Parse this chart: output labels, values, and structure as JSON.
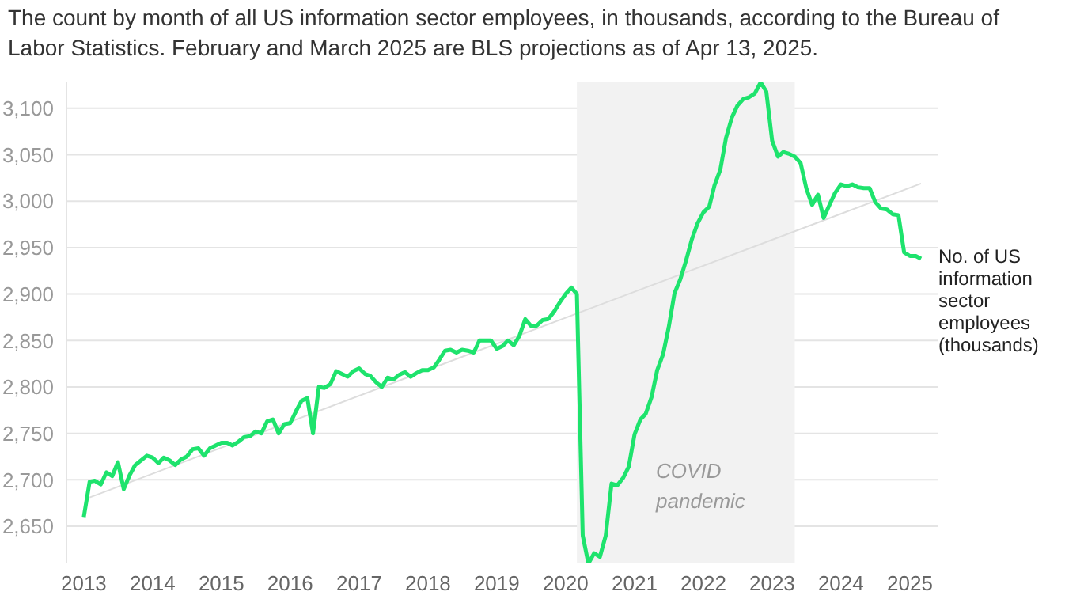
{
  "chart_data": {
    "type": "line",
    "title": "The count by month of all US information sector employees, in thousands, according to the Bureau of Labor Statistics. February and March 2025 are BLS projections as of Apr 13, 2025.",
    "x": [
      "2013-01",
      "2013-02",
      "2013-03",
      "2013-04",
      "2013-05",
      "2013-06",
      "2013-07",
      "2013-08",
      "2013-09",
      "2013-10",
      "2013-11",
      "2013-12",
      "2014-01",
      "2014-02",
      "2014-03",
      "2014-04",
      "2014-05",
      "2014-06",
      "2014-07",
      "2014-08",
      "2014-09",
      "2014-10",
      "2014-11",
      "2014-12",
      "2015-01",
      "2015-02",
      "2015-03",
      "2015-04",
      "2015-05",
      "2015-06",
      "2015-07",
      "2015-08",
      "2015-09",
      "2015-10",
      "2015-11",
      "2015-12",
      "2016-01",
      "2016-02",
      "2016-03",
      "2016-04",
      "2016-05",
      "2016-06",
      "2016-07",
      "2016-08",
      "2016-09",
      "2016-10",
      "2016-11",
      "2016-12",
      "2017-01",
      "2017-02",
      "2017-03",
      "2017-04",
      "2017-05",
      "2017-06",
      "2017-07",
      "2017-08",
      "2017-09",
      "2017-10",
      "2017-11",
      "2017-12",
      "2018-01",
      "2018-02",
      "2018-03",
      "2018-04",
      "2018-05",
      "2018-06",
      "2018-07",
      "2018-08",
      "2018-09",
      "2018-10",
      "2018-11",
      "2018-12",
      "2019-01",
      "2019-02",
      "2019-03",
      "2019-04",
      "2019-05",
      "2019-06",
      "2019-07",
      "2019-08",
      "2019-09",
      "2019-10",
      "2019-11",
      "2019-12",
      "2020-01",
      "2020-02",
      "2020-03",
      "2020-04",
      "2020-05",
      "2020-06",
      "2020-07",
      "2020-08",
      "2020-09",
      "2020-10",
      "2020-11",
      "2020-12",
      "2021-01",
      "2021-02",
      "2021-03",
      "2021-04",
      "2021-05",
      "2021-06",
      "2021-07",
      "2021-08",
      "2021-09",
      "2021-10",
      "2021-11",
      "2021-12",
      "2022-01",
      "2022-02",
      "2022-03",
      "2022-04",
      "2022-05",
      "2022-06",
      "2022-07",
      "2022-08",
      "2022-09",
      "2022-10",
      "2022-11",
      "2022-12",
      "2023-01",
      "2023-02",
      "2023-03",
      "2023-04",
      "2023-05",
      "2023-06",
      "2023-07",
      "2023-08",
      "2023-09",
      "2023-10",
      "2023-11",
      "2023-12",
      "2024-01",
      "2024-02",
      "2024-03",
      "2024-04",
      "2024-05",
      "2024-06",
      "2024-07",
      "2024-08",
      "2024-09",
      "2024-10",
      "2024-11",
      "2024-12",
      "2025-01",
      "2025-02",
      "2025-03"
    ],
    "series": [
      {
        "name": "No. of US information sector employees (thousands)",
        "color": "#1ee36d",
        "values": [
          2660,
          2698,
          2699,
          2695,
          2708,
          2704,
          2719,
          2690,
          2705,
          2716,
          2721,
          2726,
          2724,
          2718,
          2724,
          2721,
          2716,
          2722,
          2725,
          2733,
          2734,
          2726,
          2734,
          2737,
          2740,
          2740,
          2737,
          2741,
          2746,
          2747,
          2752,
          2750,
          2763,
          2765,
          2750,
          2760,
          2761,
          2774,
          2785,
          2788,
          2750,
          2800,
          2799,
          2803,
          2817,
          2814,
          2811,
          2817,
          2820,
          2814,
          2812,
          2805,
          2800,
          2810,
          2808,
          2813,
          2816,
          2811,
          2815,
          2818,
          2818,
          2821,
          2829,
          2839,
          2840,
          2837,
          2840,
          2839,
          2837,
          2850,
          2850,
          2850,
          2841,
          2844,
          2850,
          2845,
          2855,
          2873,
          2866,
          2866,
          2872,
          2873,
          2881,
          2891,
          2900,
          2907,
          2900,
          2640,
          2610,
          2621,
          2617,
          2640,
          2696,
          2694,
          2702,
          2714,
          2749,
          2765,
          2771,
          2789,
          2818,
          2835,
          2864,
          2901,
          2916,
          2936,
          2959,
          2976,
          2988,
          2994,
          3017,
          3034,
          3068,
          3090,
          3103,
          3110,
          3112,
          3116,
          3128,
          3118,
          3065,
          3048,
          3053,
          3051,
          3048,
          3041,
          3014,
          2996,
          3007,
          2982,
          2996,
          3009,
          3018,
          3016,
          3018,
          3015,
          3014,
          3014,
          2999,
          2992,
          2991,
          2986,
          2985,
          2945,
          2941,
          2941,
          2938
        ]
      },
      {
        "type": "line",
        "color": "#dddddd",
        "x": [
          "2013-02",
          "2025-03"
        ],
        "values": [
          2681,
          3019
        ]
      }
    ],
    "xlim": [
      "2012-10",
      "2025-06"
    ],
    "xticks": [
      "2013",
      "2014",
      "2015",
      "2016",
      "2017",
      "2018",
      "2019",
      "2020",
      "2021",
      "2022",
      "2023",
      "2024",
      "2025"
    ],
    "yticks": [
      {
        "value": 2650,
        "label": "2,650"
      },
      {
        "value": 2700,
        "label": "2,700"
      },
      {
        "value": 2750,
        "label": "2,750"
      },
      {
        "value": 2800,
        "label": "2,800"
      },
      {
        "value": 2850,
        "label": "2,850"
      },
      {
        "value": 2900,
        "label": "2,900"
      },
      {
        "value": 2950,
        "label": "2,950"
      },
      {
        "value": 3000,
        "label": "3,000"
      },
      {
        "value": 3050,
        "label": "3,050"
      },
      {
        "value": 3100,
        "label": "3,100"
      }
    ],
    "ylim": [
      2610,
      3128
    ],
    "bands": [
      {
        "axis": "x",
        "from": "2020-03",
        "to": "2023-05",
        "label": "COVID pandemic",
        "color": "#f2f2f2"
      }
    ],
    "grid": "y"
  }
}
